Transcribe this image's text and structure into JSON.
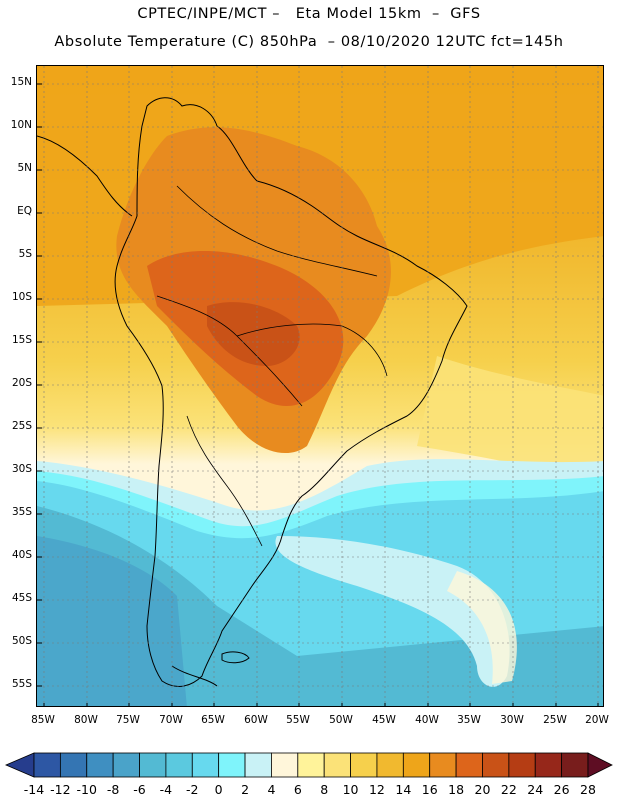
{
  "header": {
    "line1": "CPTEC/INPE/MCT –   Eta Model 15km  –  GFS",
    "line2": "Absolute Temperature (C) 850hPa  – 08/10/2020 12UTC fct=145h"
  },
  "map": {
    "variable": "Absolute Temperature (C) 850hPa",
    "model": "Eta Model 15km",
    "lat_labels": [
      "15N",
      "10N",
      "5N",
      "EQ",
      "5S",
      "10S",
      "15S",
      "20S",
      "25S",
      "30S",
      "35S",
      "40S",
      "45S",
      "50S",
      "55S"
    ],
    "lon_labels": [
      "85W",
      "80W",
      "75W",
      "70W",
      "65W",
      "60W",
      "55W",
      "50W",
      "45W",
      "40W",
      "35W",
      "30W",
      "25W",
      "20W"
    ]
  },
  "legend": {
    "colors": [
      "#263d8d",
      "#2d57a4",
      "#3475b3",
      "#3f8fc1",
      "#4aa3c9",
      "#53bad3",
      "#5bc9df",
      "#67d9ee",
      "#7ff4fb",
      "#c9f2f6",
      "#fff6da",
      "#fff39a",
      "#fbe278",
      "#f6d04c",
      "#f1b92f",
      "#eea51a",
      "#e88b1f",
      "#dd651b",
      "#c95217",
      "#b53d14",
      "#96271a",
      "#781d1c",
      "#5e0d23"
    ],
    "labels": [
      "-14",
      "-12",
      "-10",
      "-8",
      "-6",
      "-4",
      "-2",
      "0",
      "2",
      "4",
      "6",
      "8",
      "10",
      "12",
      "14",
      "16",
      "18",
      "20",
      "22",
      "24",
      "26",
      "28"
    ]
  }
}
